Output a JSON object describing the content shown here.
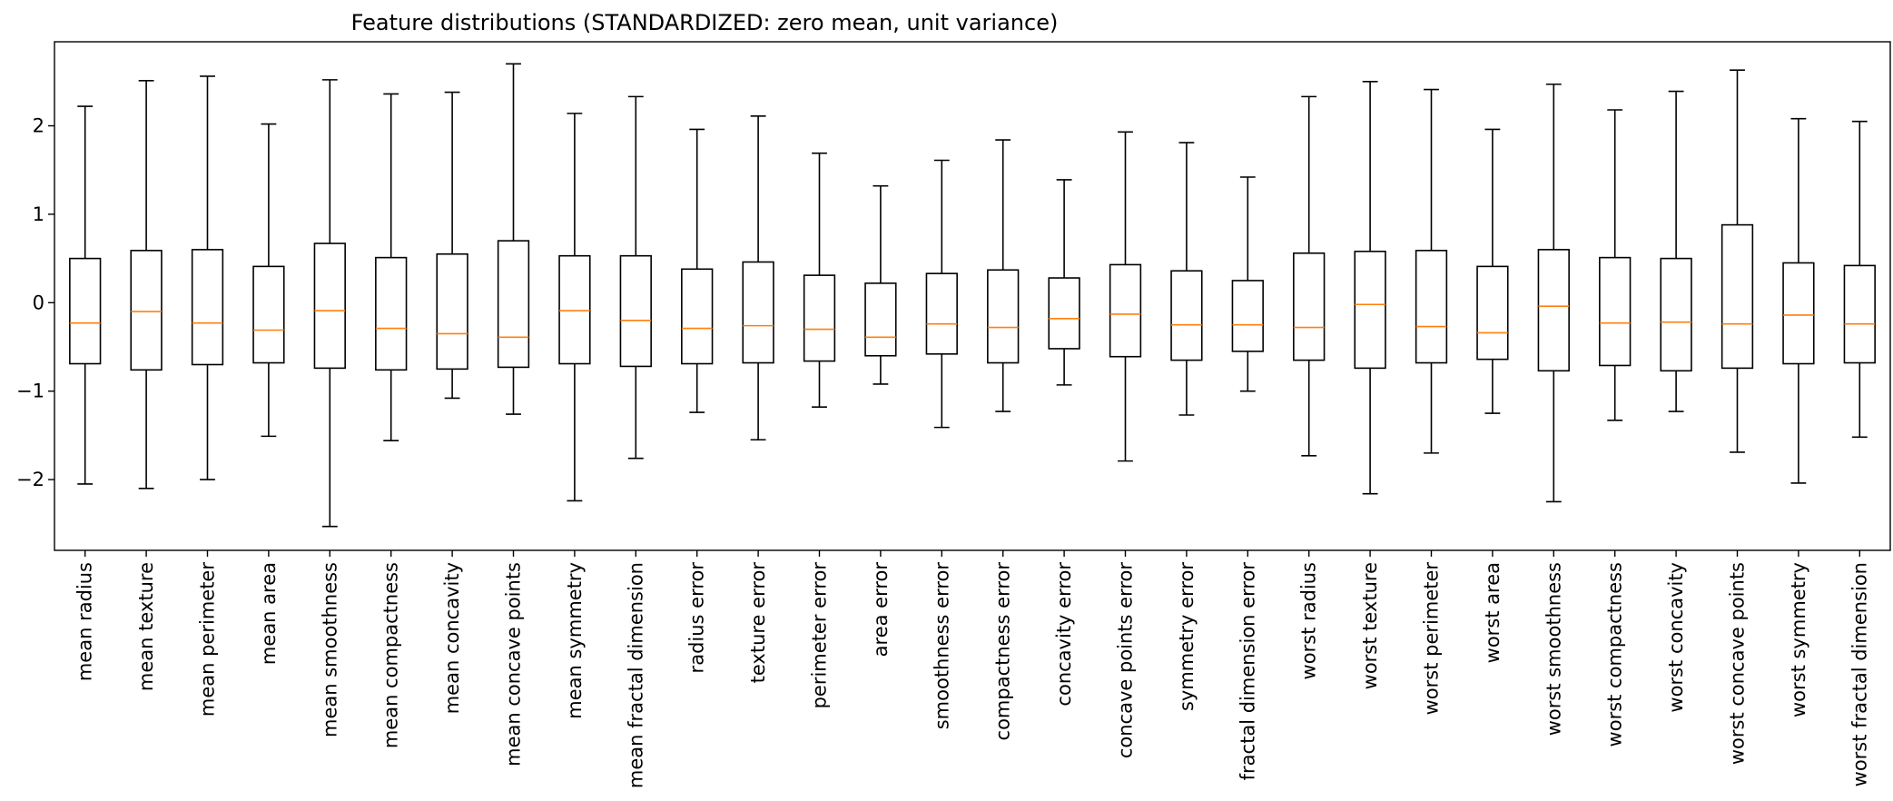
{
  "chart_data": {
    "type": "box",
    "title": "Feature distributions (STANDARDIZED: zero mean, unit variance)",
    "xlabel": "",
    "ylabel": "",
    "ylim": [
      -2.8,
      2.95
    ],
    "yticks": [
      2,
      1,
      0,
      -1,
      -2
    ],
    "ytick_labels": [
      "2",
      "1",
      "0",
      "−1",
      "−2"
    ],
    "grid": false,
    "colors": {
      "box": "#000000",
      "median": "#ff7f0e"
    },
    "categories": [
      "mean radius",
      "mean texture",
      "mean perimeter",
      "mean area",
      "mean smoothness",
      "mean compactness",
      "mean concavity",
      "mean concave points",
      "mean symmetry",
      "mean fractal dimension",
      "radius error",
      "texture error",
      "perimeter error",
      "area error",
      "smoothness error",
      "compactness error",
      "concavity error",
      "concave points error",
      "symmetry error",
      "fractal dimension error",
      "worst radius",
      "worst texture",
      "worst perimeter",
      "worst area",
      "worst smoothness",
      "worst compactness",
      "worst concavity",
      "worst concave points",
      "worst symmetry",
      "worst fractal dimension"
    ],
    "boxes": [
      {
        "whislo": -2.05,
        "q1": -0.69,
        "med": -0.23,
        "q3": 0.5,
        "whishi": 2.22
      },
      {
        "whislo": -2.1,
        "q1": -0.76,
        "med": -0.1,
        "q3": 0.59,
        "whishi": 2.51
      },
      {
        "whislo": -2.0,
        "q1": -0.7,
        "med": -0.23,
        "q3": 0.6,
        "whishi": 2.56
      },
      {
        "whislo": -1.51,
        "q1": -0.68,
        "med": -0.31,
        "q3": 0.41,
        "whishi": 2.02
      },
      {
        "whislo": -2.53,
        "q1": -0.74,
        "med": -0.09,
        "q3": 0.67,
        "whishi": 2.52
      },
      {
        "whislo": -1.56,
        "q1": -0.76,
        "med": -0.29,
        "q3": 0.51,
        "whishi": 2.36
      },
      {
        "whislo": -1.08,
        "q1": -0.75,
        "med": -0.35,
        "q3": 0.55,
        "whishi": 2.38
      },
      {
        "whislo": -1.26,
        "q1": -0.73,
        "med": -0.39,
        "q3": 0.7,
        "whishi": 2.7
      },
      {
        "whislo": -2.24,
        "q1": -0.69,
        "med": -0.09,
        "q3": 0.53,
        "whishi": 2.14
      },
      {
        "whislo": -1.76,
        "q1": -0.72,
        "med": -0.2,
        "q3": 0.53,
        "whishi": 2.33
      },
      {
        "whislo": -1.24,
        "q1": -0.69,
        "med": -0.29,
        "q3": 0.38,
        "whishi": 1.96
      },
      {
        "whislo": -1.55,
        "q1": -0.68,
        "med": -0.26,
        "q3": 0.46,
        "whishi": 2.11
      },
      {
        "whislo": -1.18,
        "q1": -0.66,
        "med": -0.3,
        "q3": 0.31,
        "whishi": 1.69
      },
      {
        "whislo": -0.92,
        "q1": -0.6,
        "med": -0.39,
        "q3": 0.22,
        "whishi": 1.32
      },
      {
        "whislo": -1.41,
        "q1": -0.58,
        "med": -0.24,
        "q3": 0.33,
        "whishi": 1.61
      },
      {
        "whislo": -1.23,
        "q1": -0.68,
        "med": -0.28,
        "q3": 0.37,
        "whishi": 1.84
      },
      {
        "whislo": -0.93,
        "q1": -0.52,
        "med": -0.18,
        "q3": 0.28,
        "whishi": 1.39
      },
      {
        "whislo": -1.79,
        "q1": -0.61,
        "med": -0.13,
        "q3": 0.43,
        "whishi": 1.93
      },
      {
        "whislo": -1.27,
        "q1": -0.65,
        "med": -0.25,
        "q3": 0.36,
        "whishi": 1.81
      },
      {
        "whislo": -1.0,
        "q1": -0.55,
        "med": -0.25,
        "q3": 0.25,
        "whishi": 1.42
      },
      {
        "whislo": -1.73,
        "q1": -0.65,
        "med": -0.28,
        "q3": 0.56,
        "whishi": 2.33
      },
      {
        "whislo": -2.16,
        "q1": -0.74,
        "med": -0.02,
        "q3": 0.58,
        "whishi": 2.5
      },
      {
        "whislo": -1.7,
        "q1": -0.68,
        "med": -0.27,
        "q3": 0.59,
        "whishi": 2.41
      },
      {
        "whislo": -1.25,
        "q1": -0.64,
        "med": -0.34,
        "q3": 0.41,
        "whishi": 1.96
      },
      {
        "whislo": -2.25,
        "q1": -0.77,
        "med": -0.04,
        "q3": 0.6,
        "whishi": 2.47
      },
      {
        "whislo": -1.33,
        "q1": -0.71,
        "med": -0.23,
        "q3": 0.51,
        "whishi": 2.18
      },
      {
        "whislo": -1.23,
        "q1": -0.77,
        "med": -0.22,
        "q3": 0.5,
        "whishi": 2.39
      },
      {
        "whislo": -1.69,
        "q1": -0.74,
        "med": -0.24,
        "q3": 0.88,
        "whishi": 2.63
      },
      {
        "whislo": -2.04,
        "q1": -0.69,
        "med": -0.14,
        "q3": 0.45,
        "whishi": 2.08
      },
      {
        "whislo": -1.52,
        "q1": -0.68,
        "med": -0.24,
        "q3": 0.42,
        "whishi": 2.05
      }
    ]
  }
}
